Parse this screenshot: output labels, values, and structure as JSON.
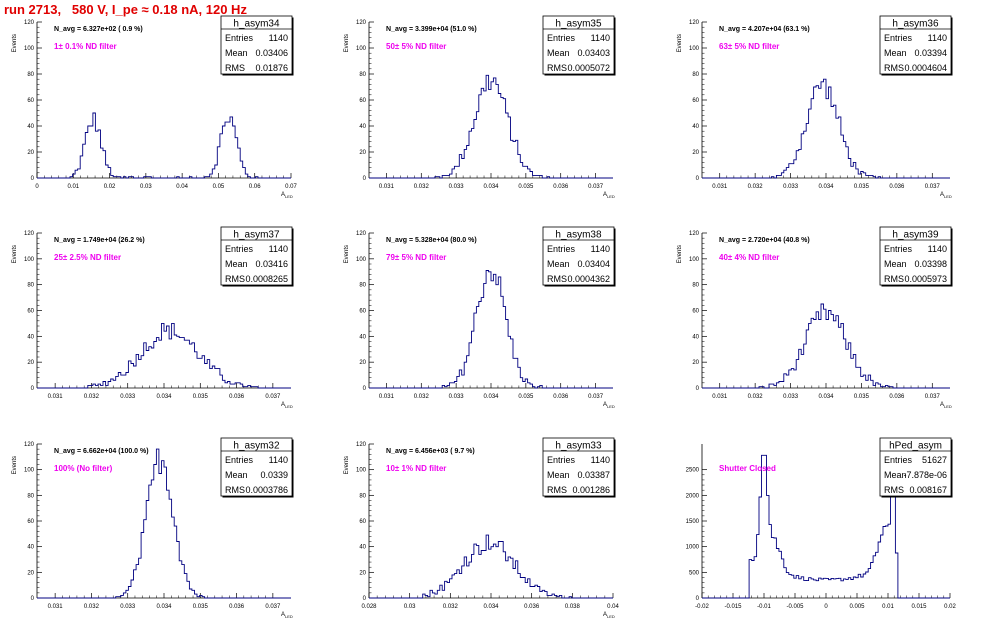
{
  "title": "run 2713,   580 V, I_pe ≈ 0.18 nA, 120 Hz",
  "colors": {
    "hist": "#000080",
    "annot": "#ee00ee",
    "title": "#e00000",
    "axis": "#000000"
  },
  "chart_data": [
    {
      "type": "histogram",
      "name": "h_asym34",
      "navg": "N_avg = 6.327e+02 ( 0.9 %)",
      "filter": "1± 0.1% ND filter",
      "stats": {
        "Entries": "1140",
        "Mean": "0.03406",
        "RMS": "0.01876"
      },
      "ylabel": "Events",
      "xlabel": "A_LED",
      "xlim": [
        0,
        0.07
      ],
      "ylim": [
        0,
        120
      ],
      "xticks": [
        "0",
        "0.01",
        "0.02",
        "0.03",
        "0.04",
        "0.05",
        "0.06",
        "0.07"
      ],
      "yticks": [
        "0",
        "20",
        "40",
        "60",
        "80",
        "100",
        "120"
      ],
      "peaks": [
        {
          "mean": 0.0155,
          "sigma": 0.0022,
          "amp": 45
        },
        {
          "mean": 0.0528,
          "sigma": 0.0022,
          "amp": 47
        }
      ],
      "range": [
        0.009,
        0.061
      ]
    },
    {
      "type": "histogram",
      "name": "h_asym35",
      "navg": "N_avg = 3.399e+04 (51.0 %)",
      "filter": "50± 5% ND filter",
      "stats": {
        "Entries": "1140",
        "Mean": "0.03403",
        "RMS": "0.0005072"
      },
      "ylabel": "Events",
      "xlabel": "A_LED",
      "xlim": [
        0.0305,
        0.0375
      ],
      "ylim": [
        0,
        120
      ],
      "xticks": [
        "0.031",
        "0.032",
        "0.033",
        "0.034",
        "0.035",
        "0.036",
        "0.037"
      ],
      "yticks": [
        "0",
        "20",
        "40",
        "60",
        "80",
        "100",
        "120"
      ],
      "peaks": [
        {
          "mean": 0.034,
          "sigma": 0.00048,
          "amp": 75
        }
      ],
      "range": [
        0.0323,
        0.0357
      ]
    },
    {
      "type": "histogram",
      "name": "h_asym36",
      "navg": "N_avg = 4.207e+04 (63.1 %)",
      "filter": "63± 5% ND filter",
      "stats": {
        "Entries": "1140",
        "Mean": "0.03394",
        "RMS": "0.0004604"
      },
      "ylabel": "Events",
      "xlabel": "A_LED",
      "xlim": [
        0.0305,
        0.0375
      ],
      "ylim": [
        0,
        120
      ],
      "xticks": [
        "0.031",
        "0.032",
        "0.033",
        "0.034",
        "0.035",
        "0.036",
        "0.037"
      ],
      "yticks": [
        "0",
        "20",
        "40",
        "60",
        "80",
        "100",
        "120"
      ],
      "peaks": [
        {
          "mean": 0.0339,
          "sigma": 0.00045,
          "amp": 72
        }
      ],
      "range": [
        0.0324,
        0.0356
      ]
    },
    {
      "type": "histogram",
      "name": "h_asym37",
      "navg": "N_avg = 1.749e+04 (26.2 %)",
      "filter": "25± 2.5% ND filter",
      "stats": {
        "Entries": "1140",
        "Mean": "0.03416",
        "RMS": "0.0008265"
      },
      "ylabel": "Events",
      "xlabel": "A_LED",
      "xlim": [
        0.0305,
        0.0375
      ],
      "ylim": [
        0,
        120
      ],
      "xticks": [
        "0.031",
        "0.032",
        "0.033",
        "0.034",
        "0.035",
        "0.036",
        "0.037"
      ],
      "yticks": [
        "0",
        "20",
        "40",
        "60",
        "80",
        "100",
        "120"
      ],
      "peaks": [
        {
          "mean": 0.03415,
          "sigma": 0.0008,
          "amp": 44
        }
      ],
      "range": [
        0.0318,
        0.0366
      ]
    },
    {
      "type": "histogram",
      "name": "h_asym38",
      "navg": "N_avg = 5.328e+04 (80.0 %)",
      "filter": "79± 5% ND filter",
      "stats": {
        "Entries": "1140",
        "Mean": "0.03404",
        "RMS": "0.0004362"
      },
      "ylabel": "Events",
      "xlabel": "A_LED",
      "xlim": [
        0.0305,
        0.0375
      ],
      "ylim": [
        0,
        120
      ],
      "xticks": [
        "0.031",
        "0.032",
        "0.033",
        "0.034",
        "0.035",
        "0.036",
        "0.037"
      ],
      "yticks": [
        "0",
        "20",
        "40",
        "60",
        "80",
        "100",
        "120"
      ],
      "peaks": [
        {
          "mean": 0.034,
          "sigma": 0.00042,
          "amp": 92
        }
      ],
      "range": [
        0.0326,
        0.0355
      ]
    },
    {
      "type": "histogram",
      "name": "h_asym39",
      "navg": "N_avg = 2.720e+04 (40.8 %)",
      "filter": "40± 4% ND filter",
      "stats": {
        "Entries": "1140",
        "Mean": "0.03398",
        "RMS": "0.0005973"
      },
      "ylabel": "Events",
      "xlabel": "A_LED",
      "xlim": [
        0.0305,
        0.0375
      ],
      "ylim": [
        0,
        120
      ],
      "xticks": [
        "0.031",
        "0.032",
        "0.033",
        "0.034",
        "0.035",
        "0.036",
        "0.037"
      ],
      "yticks": [
        "0",
        "20",
        "40",
        "60",
        "80",
        "100",
        "120"
      ],
      "peaks": [
        {
          "mean": 0.034,
          "sigma": 0.00058,
          "amp": 58
        }
      ],
      "range": [
        0.0321,
        0.036
      ]
    },
    {
      "type": "histogram",
      "name": "h_asym32",
      "navg": "N_avg = 6.662e+04 (100.0 %)",
      "filter": "100% (No filter)",
      "stats": {
        "Entries": "1140",
        "Mean": "0.0339",
        "RMS": "0.0003786"
      },
      "ylabel": "Events",
      "xlabel": "A_LED",
      "xlim": [
        0.0305,
        0.0375
      ],
      "ylim": [
        0,
        120
      ],
      "xticks": [
        "0.031",
        "0.032",
        "0.033",
        "0.034",
        "0.035",
        "0.036",
        "0.037"
      ],
      "yticks": [
        "0",
        "20",
        "40",
        "60",
        "80",
        "100",
        "120"
      ],
      "peaks": [
        {
          "mean": 0.0339,
          "sigma": 0.00037,
          "amp": 108
        }
      ],
      "range": [
        0.0327,
        0.0352
      ]
    },
    {
      "type": "histogram",
      "name": "h_asym33",
      "navg": "N_avg = 6.456e+03 ( 9.7 %)",
      "filter": "10± 1% ND filter",
      "stats": {
        "Entries": "1140",
        "Mean": "0.03387",
        "RMS": "0.001286"
      },
      "ylabel": "Events",
      "xlabel": "A_LED",
      "xlim": [
        0.028,
        0.04
      ],
      "ylim": [
        0,
        120
      ],
      "xticks": [
        "0.028",
        "0.03",
        "0.032",
        "0.034",
        "0.036",
        "0.038",
        "0.04"
      ],
      "yticks": [
        "0",
        "20",
        "40",
        "60",
        "80",
        "100",
        "120"
      ],
      "peaks": [
        {
          "mean": 0.0339,
          "sigma": 0.00125,
          "amp": 43
        }
      ],
      "range": [
        0.03,
        0.038
      ]
    },
    {
      "type": "histogram",
      "name": "hPed_asym",
      "navg": "",
      "filter": "Shutter Closed",
      "stats": {
        "Entries": "51627",
        "Mean": "-7.878e-06",
        "RMS": "0.008167"
      },
      "ylabel": "",
      "xlabel": "",
      "xlim": [
        -0.02,
        0.02
      ],
      "ylim": [
        0,
        3000
      ],
      "xticks": [
        "-0.02",
        "-0.015",
        "-0.01",
        "-0.005",
        "0",
        "0.005",
        "0.01",
        "0.015",
        "0.02"
      ],
      "yticks": [
        "0",
        "500",
        "1000",
        "1500",
        "2000",
        "2500"
      ],
      "profile": "pedestal",
      "range": [
        -0.0125,
        0.0115
      ]
    }
  ]
}
